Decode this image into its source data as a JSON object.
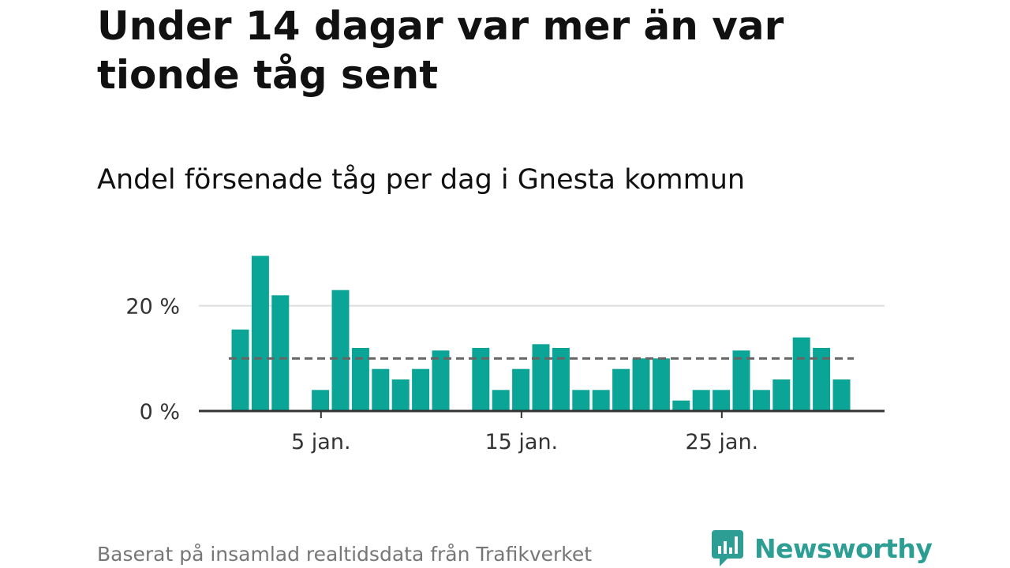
{
  "title": "Under 14 dagar var mer än var tionde tåg sent",
  "subtitle": "Andel försenade tåg per dag i Gnesta kommun",
  "source": "Baserat på insamlad realtidsdata från Trafikverket",
  "brand": {
    "name": "Newsworthy",
    "icon": "newsworthy-logo-icon",
    "color": "#2c9e94"
  },
  "colors": {
    "bar": "#0aa596",
    "axis": "#333333",
    "grid": "#dddddd",
    "reference_line": "#666666"
  },
  "chart_data": {
    "type": "bar",
    "x": [
      "1 jan.",
      "2 jan.",
      "3 jan.",
      "4 jan.",
      "5 jan.",
      "6 jan.",
      "7 jan.",
      "8 jan.",
      "9 jan.",
      "10 jan.",
      "11 jan.",
      "12 jan.",
      "13 jan.",
      "14 jan.",
      "15 jan.",
      "16 jan.",
      "17 jan.",
      "18 jan.",
      "19 jan.",
      "20 jan.",
      "21 jan.",
      "22 jan.",
      "23 jan.",
      "24 jan.",
      "25 jan.",
      "26 jan.",
      "27 jan.",
      "28 jan.",
      "29 jan.",
      "30 jan.",
      "31 jan."
    ],
    "values": [
      15.5,
      29.5,
      22,
      null,
      4,
      23,
      12,
      8,
      6,
      8,
      11.5,
      null,
      12,
      4,
      8,
      12.7,
      12,
      4,
      4,
      8,
      10,
      10,
      2,
      4,
      4,
      11.5,
      4,
      6,
      14,
      12,
      6
    ],
    "x_ticks": [
      {
        "day": 5,
        "label": "5 jan."
      },
      {
        "day": 15,
        "label": "15 jan."
      },
      {
        "day": 25,
        "label": "25 jan."
      }
    ],
    "y_ticks": [
      {
        "value": 0,
        "label": "0 %"
      },
      {
        "value": 20,
        "label": "20 %"
      }
    ],
    "ylim": [
      0,
      30
    ],
    "unit": "%",
    "reference_line": 10,
    "grid": true
  }
}
